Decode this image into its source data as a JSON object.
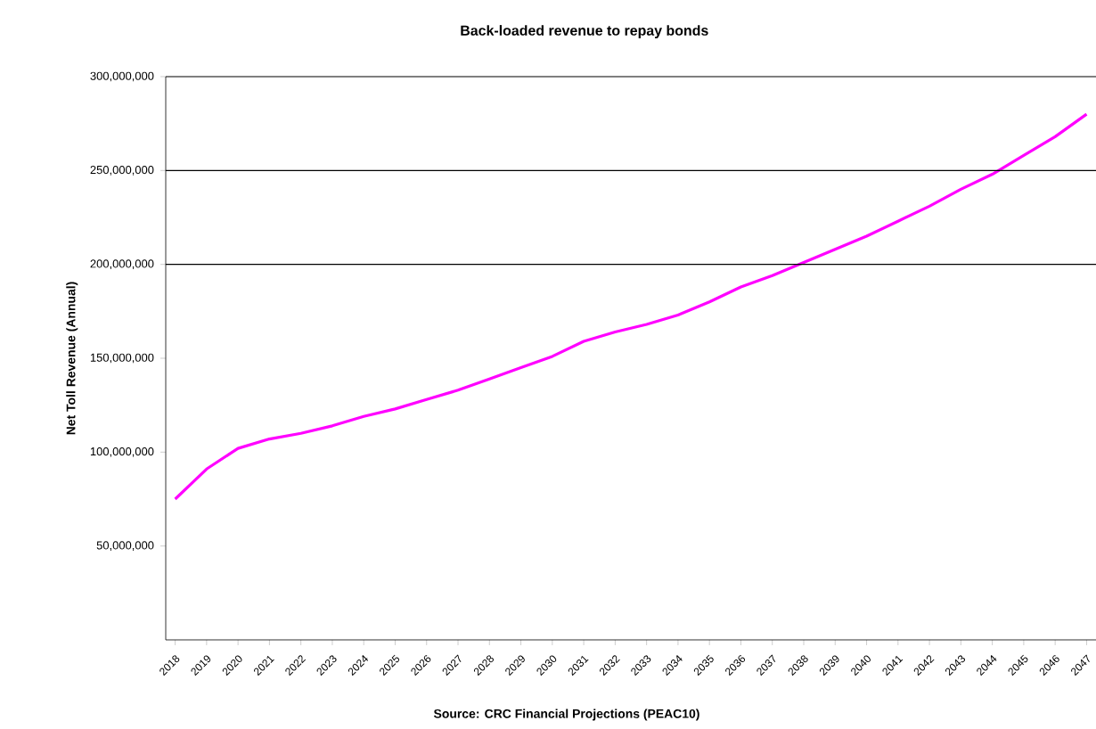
{
  "chart_data": {
    "type": "line",
    "title": "Back-loaded revenue to repay bonds",
    "ylabel": "Net Toll Revenue (Annual)",
    "annotations": [
      "Source:  CRC Financial Projections (PEAC10)"
    ],
    "categories": [
      "2018",
      "2019",
      "2020",
      "2021",
      "2022",
      "2023",
      "2024",
      "2025",
      "2026",
      "2027",
      "2028",
      "2029",
      "2030",
      "2031",
      "2032",
      "2033",
      "2034",
      "2035",
      "2036",
      "2037",
      "2038",
      "2039",
      "2040",
      "2041",
      "2042",
      "2043",
      "2044",
      "2045",
      "2046",
      "2047"
    ],
    "series": [
      {
        "color": "#ff00ff",
        "values": [
          75000000,
          91000000,
          102000000,
          107000000,
          110000000,
          114000000,
          119000000,
          123000000,
          128000000,
          133000000,
          139000000,
          145000000,
          151000000,
          159000000,
          164000000,
          168000000,
          173000000,
          180000000,
          188000000,
          194000000,
          201000000,
          208000000,
          215000000,
          223000000,
          231000000,
          240000000,
          248000000,
          258000000,
          268000000,
          280000000
        ]
      }
    ],
    "ylim": [
      0,
      300000000
    ],
    "yticks": [
      {
        "value": 50000000,
        "label": "50,000,000"
      },
      {
        "value": 100000000,
        "label": "100,000,000"
      },
      {
        "value": 150000000,
        "label": "150,000,000"
      },
      {
        "value": 200000000,
        "label": "200,000,000"
      },
      {
        "value": 250000000,
        "label": "250,000,000"
      },
      {
        "value": 300000000,
        "label": "300,000,000"
      }
    ],
    "ref_lines": [
      {
        "axis": "y",
        "value": 200000000
      },
      {
        "axis": "y",
        "value": 250000000
      }
    ],
    "marker": "none",
    "line_style": "solid"
  }
}
